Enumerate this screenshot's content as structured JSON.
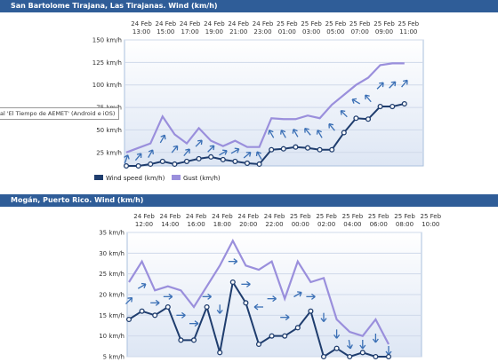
{
  "chart_data": [
    {
      "type": "line",
      "title": "San Bartolome Tirajana, Las Tirajanas. Wind (km/h)",
      "x_top": [
        "24 Feb\n13:00",
        "24 Feb\n15:00",
        "24 Feb\n17:00",
        "24 Feb\n19:00",
        "24 Feb\n21:00",
        "24 Feb\n23:00",
        "25 Feb\n01:00",
        "25 Feb\n03:00",
        "25 Feb\n05:00",
        "25 Feb\n07:00",
        "25 Feb\n09:00",
        "25 Feb\n11:00"
      ],
      "yticks": [
        "25 km/h",
        "50 km/h",
        "75 km/h",
        "100 km/h",
        "125 km/h",
        "150 km/h"
      ],
      "ylim": [
        10,
        150
      ],
      "series": [
        {
          "name": "Wind speed (km/h)",
          "color": "#1f3d6e",
          "values": [
            10,
            10,
            12,
            15,
            12,
            15,
            18,
            20,
            17,
            15,
            13,
            12,
            28,
            29,
            31,
            30,
            28,
            28,
            47,
            63,
            62,
            76,
            76,
            79
          ]
        },
        {
          "name": "Gust (km/h)",
          "color": "#9a8fdc",
          "values": [
            25,
            30,
            35,
            65,
            45,
            35,
            52,
            38,
            32,
            38,
            31,
            31,
            63,
            62,
            62,
            66,
            63,
            78,
            89,
            100,
            108,
            122,
            124,
            124
          ]
        }
      ],
      "arrows": [
        20,
        40,
        30,
        30,
        40,
        40,
        45,
        45,
        60,
        60,
        50,
        330,
        330,
        330,
        330,
        320,
        330,
        320,
        315,
        300,
        320,
        45,
        45,
        40
      ],
      "tooltip": "al 'El Tiempo de AEMET' (Android e iOS)"
    },
    {
      "type": "line",
      "title": "Mogán, Puerto Rico. Wind (km/h)",
      "x_top": [
        "24 Feb\n12:00",
        "24 Feb\n14:00",
        "24 Feb\n16:00",
        "24 Feb\n18:00",
        "24 Feb\n20:00",
        "24 Feb\n22:00",
        "25 Feb\n00:00",
        "25 Feb\n02:00",
        "25 Feb\n04:00",
        "25 Feb\n06:00",
        "25 Feb\n08:00",
        "25 Feb\n10:00"
      ],
      "yticks": [
        "5 km/h",
        "10 km/h",
        "15 km/h",
        "20 km/h",
        "25 km/h",
        "30 km/h",
        "35 km/h"
      ],
      "ylim": [
        5,
        35
      ],
      "series": [
        {
          "name": "Wind speed (km/h)",
          "color": "#1f3d6e",
          "values": [
            14,
            16,
            15,
            17,
            9,
            9,
            17,
            6,
            23,
            18,
            8,
            10,
            10,
            12,
            16,
            5,
            7,
            5,
            6,
            5,
            5
          ]
        },
        {
          "name": "Gust (km/h)",
          "color": "#9a8fdc",
          "values": [
            23,
            28,
            21,
            22,
            21,
            17,
            22,
            27,
            33,
            27,
            26,
            28,
            19,
            28,
            23,
            24,
            14,
            11,
            10,
            14,
            8
          ]
        }
      ],
      "arrows": [
        45,
        60,
        90,
        90,
        90,
        90,
        90,
        180,
        90,
        90,
        270,
        90,
        90,
        60,
        90,
        180,
        180,
        170,
        180,
        180,
        180
      ]
    }
  ],
  "legend": {
    "wind": "Wind speed (km/h)",
    "gust": "Gust (km/h)"
  }
}
